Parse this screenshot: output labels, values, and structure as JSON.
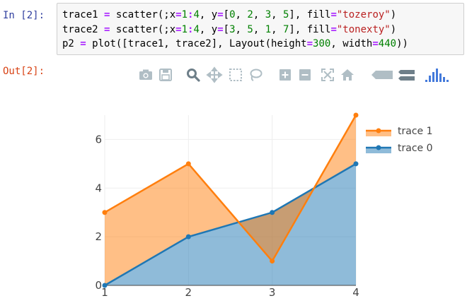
{
  "cell": {
    "in_prompt": "In [2]:",
    "out_prompt": "Out[2]:",
    "code_lines": [
      [
        {
          "t": "trace1 "
        },
        {
          "t": "=",
          "c": "op"
        },
        {
          "t": " scatter(;x"
        },
        {
          "t": "=",
          "c": "op"
        },
        {
          "t": "1",
          "c": "num"
        },
        {
          "t": ":",
          "c": "op"
        },
        {
          "t": "4",
          "c": "num"
        },
        {
          "t": ", y"
        },
        {
          "t": "=",
          "c": "op"
        },
        {
          "t": "["
        },
        {
          "t": "0",
          "c": "num"
        },
        {
          "t": ", "
        },
        {
          "t": "2",
          "c": "num"
        },
        {
          "t": ", "
        },
        {
          "t": "3",
          "c": "num"
        },
        {
          "t": ", "
        },
        {
          "t": "5",
          "c": "num"
        },
        {
          "t": "], fill"
        },
        {
          "t": "=",
          "c": "op"
        },
        {
          "t": "\"tozeroy\"",
          "c": "str"
        },
        {
          "t": ")"
        }
      ],
      [
        {
          "t": "trace2 "
        },
        {
          "t": "=",
          "c": "op"
        },
        {
          "t": " scatter(;x"
        },
        {
          "t": "=",
          "c": "op"
        },
        {
          "t": "1",
          "c": "num"
        },
        {
          "t": ":",
          "c": "op"
        },
        {
          "t": "4",
          "c": "num"
        },
        {
          "t": ", y"
        },
        {
          "t": "=",
          "c": "op"
        },
        {
          "t": "["
        },
        {
          "t": "3",
          "c": "num"
        },
        {
          "t": ", "
        },
        {
          "t": "5",
          "c": "num"
        },
        {
          "t": ", "
        },
        {
          "t": "1",
          "c": "num"
        },
        {
          "t": ", "
        },
        {
          "t": "7",
          "c": "num"
        },
        {
          "t": "], fill"
        },
        {
          "t": "=",
          "c": "op"
        },
        {
          "t": "\"tonexty\"",
          "c": "str"
        },
        {
          "t": ")"
        }
      ],
      [
        {
          "t": "p2 "
        },
        {
          "t": "=",
          "c": "op"
        },
        {
          "t": " plot([trace1, trace2], Layout(height"
        },
        {
          "t": "=",
          "c": "op"
        },
        {
          "t": "300",
          "c": "num"
        },
        {
          "t": ", width"
        },
        {
          "t": "=",
          "c": "op"
        },
        {
          "t": "440",
          "c": "num"
        },
        {
          "t": "))"
        }
      ]
    ]
  },
  "modebar": {
    "buttons": [
      "camera-icon",
      "save-icon",
      "zoom-icon",
      "pan-icon",
      "box-select-icon",
      "lasso-select-icon",
      "zoom-in-icon",
      "zoom-out-icon",
      "autoscale-icon",
      "home-icon",
      "hover-closest-icon",
      "hover-compare-icon",
      "plotly-logo-icon"
    ]
  },
  "colors": {
    "trace0": "#1f77b4",
    "trace1": "#ff7f0e",
    "icon": "#b0bec5",
    "grid": "#eeeeee",
    "axis": "#444444"
  },
  "chart_data": {
    "type": "area",
    "x": [
      1,
      2,
      3,
      4
    ],
    "series": [
      {
        "name": "trace 0",
        "values": [
          0,
          2,
          3,
          5
        ],
        "fill": "tozeroy"
      },
      {
        "name": "trace 1",
        "values": [
          3,
          5,
          1,
          7
        ],
        "fill": "tonexty"
      }
    ],
    "x_ticks": [
      "1",
      "2",
      "3",
      "4"
    ],
    "y_ticks": [
      "0",
      "2",
      "4",
      "6"
    ],
    "xlim": [
      1,
      4
    ],
    "ylim": [
      0,
      7
    ],
    "grid": true,
    "legend_position": "top-right",
    "legend_order": [
      "trace 1",
      "trace 0"
    ]
  }
}
